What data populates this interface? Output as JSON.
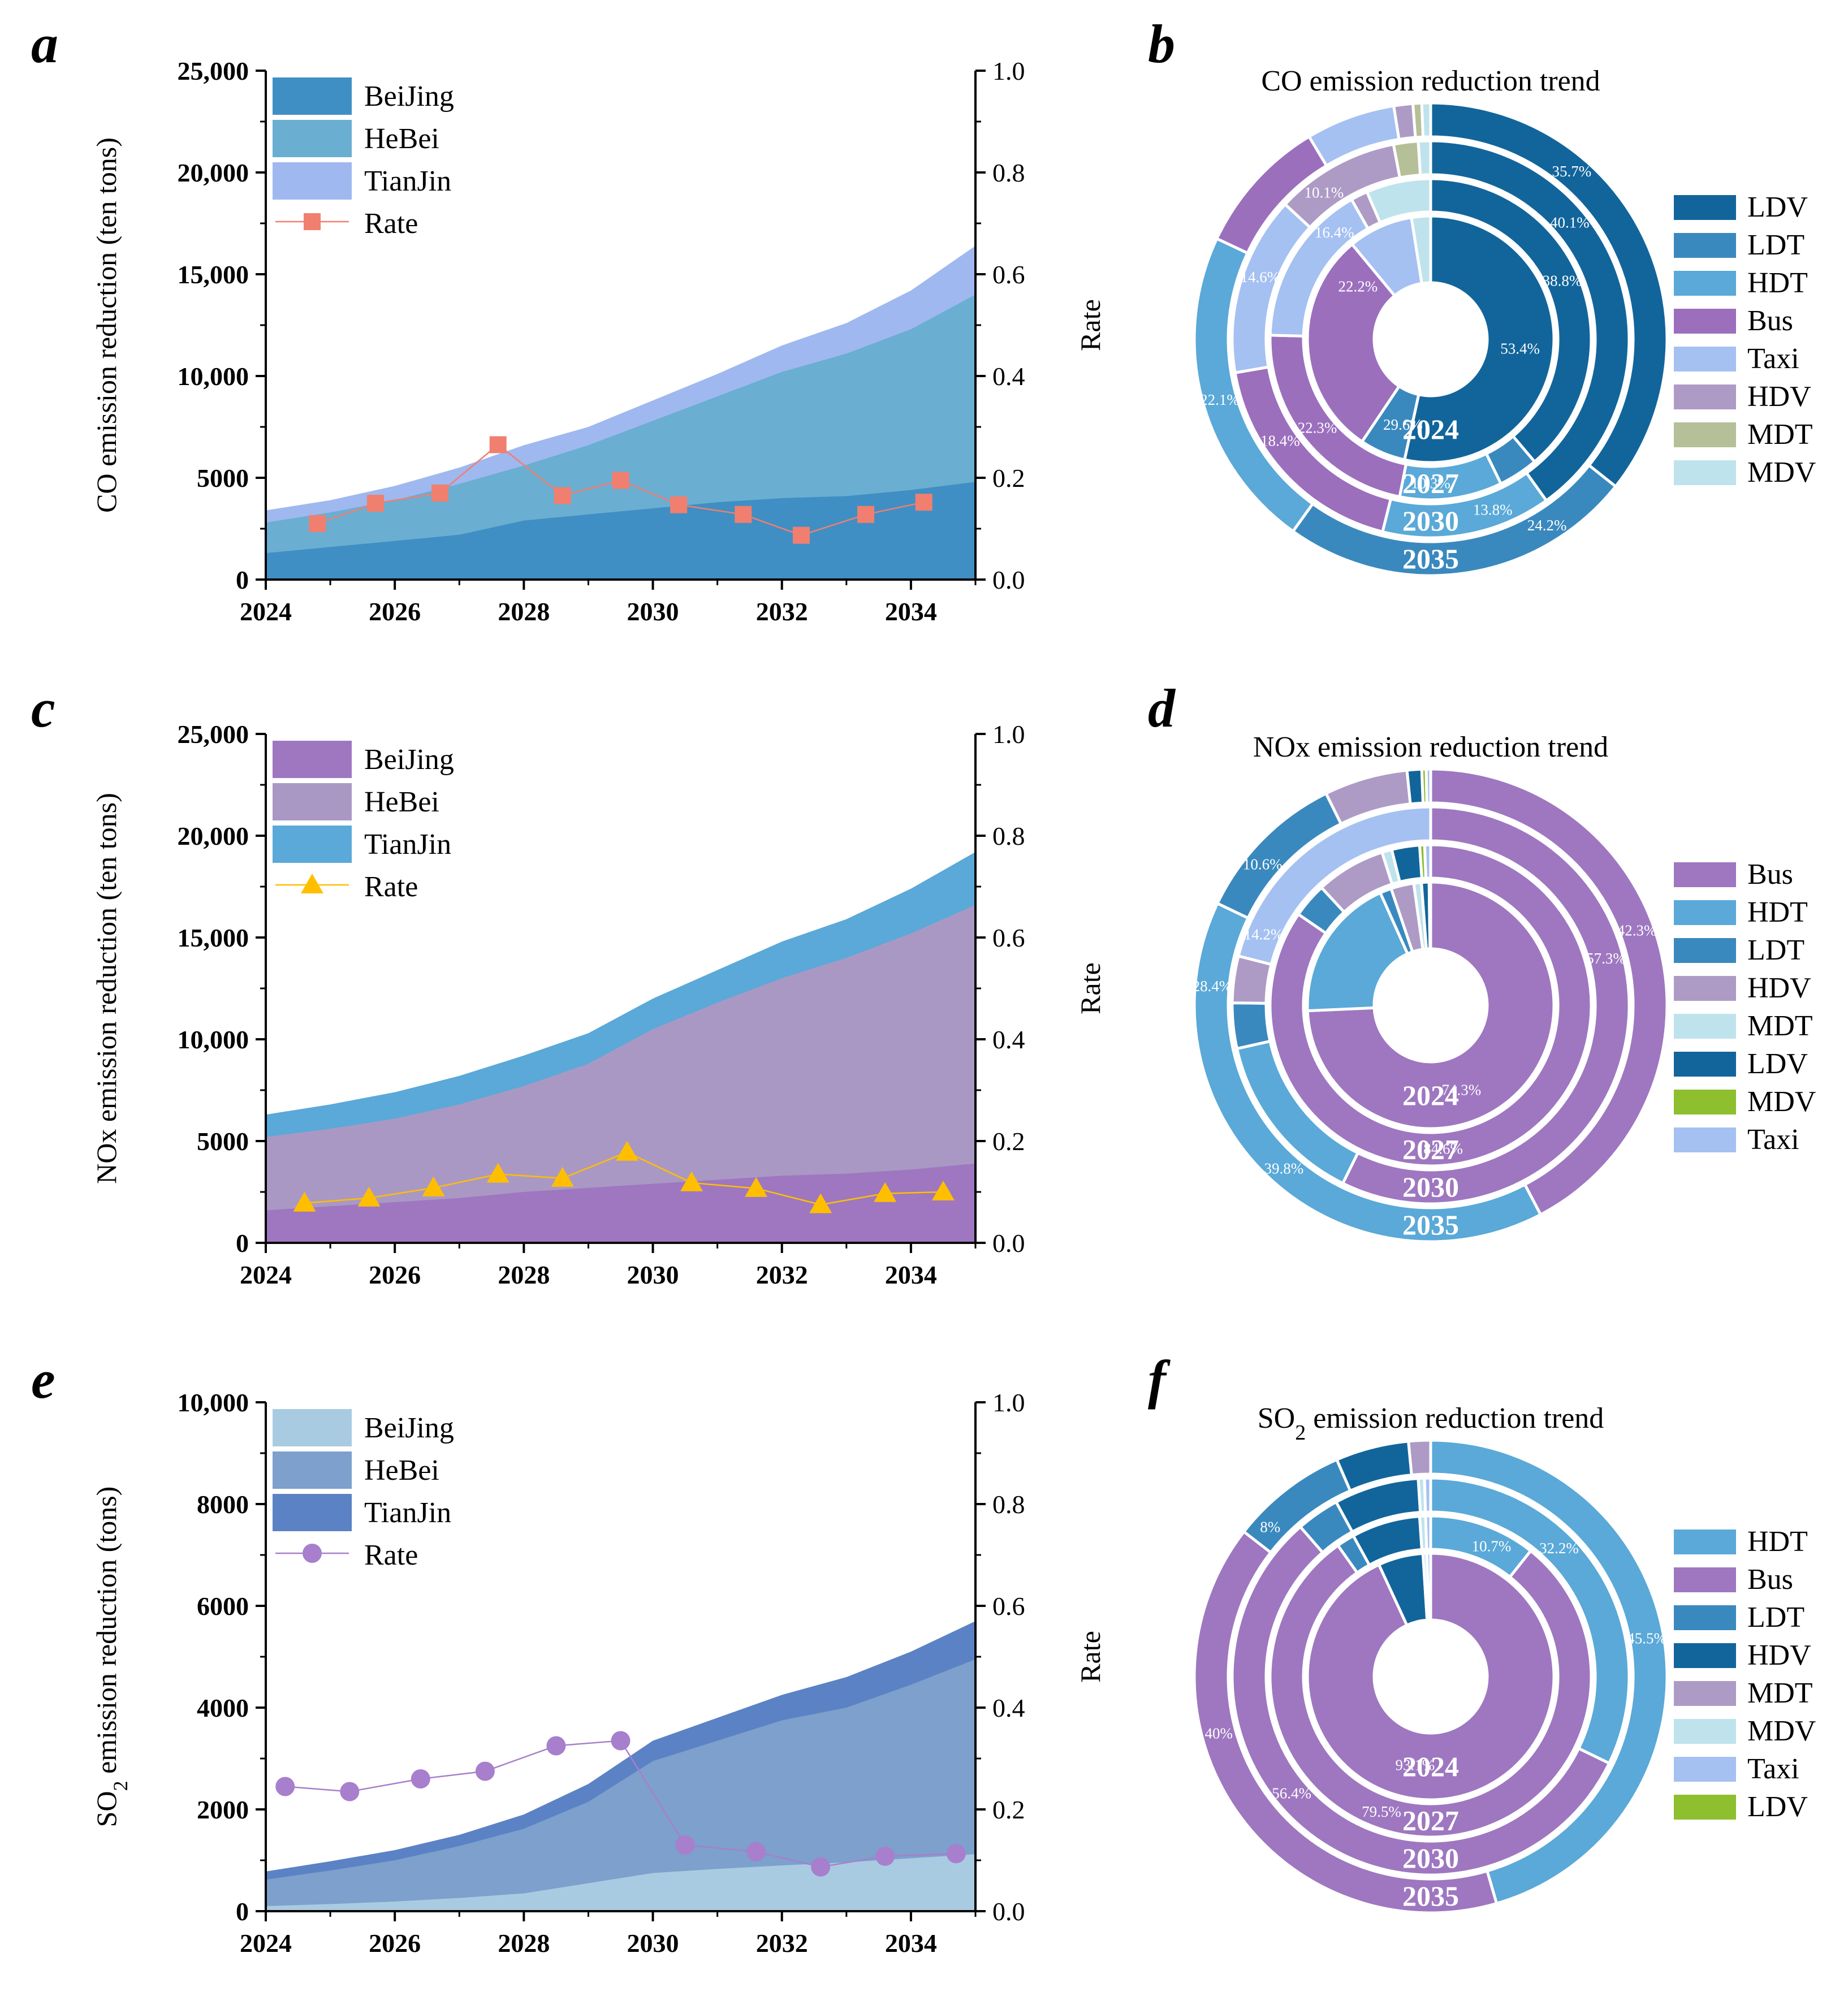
{
  "colors": {
    "axis": "#000000",
    "rate_co": "#f07f6f",
    "rate_nox": "#ffbf00",
    "rate_so2": "#a77fcc"
  },
  "area_panels": [
    {
      "letter": "a",
      "ylabel": "CO emission reduction (ten tons)",
      "ylabel_sub": "",
      "right_label": "Rate",
      "left_ticks": [
        "25,000",
        "20,000",
        "15,000",
        "10,000",
        "5000",
        "0"
      ],
      "right_ticks": [
        "1.0",
        "0.8",
        "0.6",
        "0.4",
        "0.2",
        "0.0"
      ],
      "x_ticks": [
        "2024",
        "2026",
        "2028",
        "2030",
        "2032",
        "2034"
      ],
      "legend": [
        {
          "label": "BeiJing",
          "color": "#3f8fc4",
          "kind": "area"
        },
        {
          "label": "HeBei",
          "color": "#6aaed2",
          "kind": "area"
        },
        {
          "label": "TianJin",
          "color": "#9fb8f0",
          "kind": "area"
        },
        {
          "label": "Rate",
          "color": "#f07f6f",
          "kind": "square"
        }
      ]
    },
    {
      "letter": "c",
      "ylabel": "NOx emission reduction (ten tons)",
      "ylabel_sub": "",
      "right_label": "Rate",
      "left_ticks": [
        "25,000",
        "20,000",
        "15,000",
        "10,000",
        "5000",
        "0"
      ],
      "right_ticks": [
        "1.0",
        "0.8",
        "0.6",
        "0.4",
        "0.2",
        "0.0"
      ],
      "x_ticks": [
        "2024",
        "2026",
        "2028",
        "2030",
        "2032",
        "2034"
      ],
      "legend": [
        {
          "label": "BeiJing",
          "color": "#9e77c0",
          "kind": "area"
        },
        {
          "label": "HeBei",
          "color": "#aa98c4",
          "kind": "area"
        },
        {
          "label": "TianJin",
          "color": "#5aa9d8",
          "kind": "area"
        },
        {
          "label": "Rate",
          "color": "#ffbf00",
          "kind": "triangle"
        }
      ]
    },
    {
      "letter": "e",
      "ylabel": "SO",
      "ylabel_sub": "2",
      "ylabel_rest": " emission reduction (tons)",
      "right_label": "Rate",
      "left_ticks": [
        "10,000",
        "8000",
        "6000",
        "4000",
        "2000",
        "0"
      ],
      "right_ticks": [
        "1.0",
        "0.8",
        "0.6",
        "0.4",
        "0.2",
        "0.0"
      ],
      "x_ticks": [
        "2024",
        "2026",
        "2028",
        "2030",
        "2032",
        "2034"
      ],
      "legend": [
        {
          "label": "BeiJing",
          "color": "#a8cbe2",
          "kind": "area"
        },
        {
          "label": "HeBei",
          "color": "#7da0cc",
          "kind": "area"
        },
        {
          "label": "TianJin",
          "color": "#5b82c4",
          "kind": "area"
        },
        {
          "label": "Rate",
          "color": "#a77fcc",
          "kind": "circle"
        }
      ]
    }
  ],
  "donut_panels": [
    {
      "letter": "b",
      "title": "CO emission reduction trend",
      "title_sub": "",
      "title_rest": "",
      "legend": [
        {
          "label": "LDV",
          "color": "#12659b"
        },
        {
          "label": "LDT",
          "color": "#3a89be"
        },
        {
          "label": "HDT",
          "color": "#5aa9d8"
        },
        {
          "label": "Bus",
          "color": "#9c6fbd"
        },
        {
          "label": "Taxi",
          "color": "#a5c1f2"
        },
        {
          "label": "HDV",
          "color": "#ad9bc6"
        },
        {
          "label": "MDT",
          "color": "#b5bf98"
        },
        {
          "label": "MDV",
          "color": "#bfe3ec"
        }
      ],
      "ring_labels": [
        {
          "text": "53.4%",
          "ring": 0,
          "angle": 96
        },
        {
          "text": "29.6%",
          "ring": 0,
          "angle": 198
        },
        {
          "text": "22.2%",
          "ring": 0,
          "angle": 306
        },
        {
          "text": "38.8%",
          "ring": 1,
          "angle": 66
        },
        {
          "text": "10.3%",
          "ring": 1,
          "angle": 180
        },
        {
          "text": "22.3%",
          "ring": 1,
          "angle": 232
        },
        {
          "text": "16.4%",
          "ring": 1,
          "angle": 318
        },
        {
          "text": "40.1%",
          "ring": 2,
          "angle": 50
        },
        {
          "text": "13.8%",
          "ring": 2,
          "angle": 160
        },
        {
          "text": "18.4%",
          "ring": 2,
          "angle": 236
        },
        {
          "text": "14.6%",
          "ring": 2,
          "angle": 290
        },
        {
          "text": "10.1%",
          "ring": 2,
          "angle": 324
        },
        {
          "text": "35.7%",
          "ring": 3,
          "angle": 40
        },
        {
          "text": "24.2%",
          "ring": 3,
          "angle": 148
        },
        {
          "text": "22.1%",
          "ring": 3,
          "angle": 254
        }
      ]
    },
    {
      "letter": "d",
      "title": "NOx emission reduction trend",
      "title_sub": "",
      "title_rest": "",
      "legend": [
        {
          "label": "Bus",
          "color": "#9e77c0"
        },
        {
          "label": "HDT",
          "color": "#5aa9d8"
        },
        {
          "label": "LDT",
          "color": "#3a89be"
        },
        {
          "label": "HDV",
          "color": "#ad9bc6"
        },
        {
          "label": "MDT",
          "color": "#bfe3ec"
        },
        {
          "label": "LDV",
          "color": "#12659b"
        },
        {
          "label": "MDV",
          "color": "#8dbf2e"
        },
        {
          "label": "Taxi",
          "color": "#a5c1f2"
        }
      ],
      "ring_labels": [
        {
          "text": "74.3%",
          "ring": 0,
          "angle": 160
        },
        {
          "text": "84.6%",
          "ring": 1,
          "angle": 175
        },
        {
          "text": "57.3%",
          "ring": 2,
          "angle": 75
        },
        {
          "text": "14.2%",
          "ring": 2,
          "angle": 293
        },
        {
          "text": "42.3%",
          "ring": 3,
          "angle": 70
        },
        {
          "text": "39.8%",
          "ring": 3,
          "angle": 222
        },
        {
          "text": "28.4%",
          "ring": 3,
          "angle": 275
        },
        {
          "text": "10.6%",
          "ring": 3,
          "angle": 310
        }
      ]
    },
    {
      "letter": "f",
      "title": "SO",
      "title_sub": "2",
      "title_rest": " emission reduction trend",
      "legend": [
        {
          "label": "HDT",
          "color": "#5aa9d8"
        },
        {
          "label": "Bus",
          "color": "#9e77c0"
        },
        {
          "label": "LDT",
          "color": "#3a89be"
        },
        {
          "label": "HDV",
          "color": "#12659b"
        },
        {
          "label": "MDT",
          "color": "#ad9bc6"
        },
        {
          "label": "MDV",
          "color": "#bfe3ec"
        },
        {
          "label": "Taxi",
          "color": "#a5c1f2"
        },
        {
          "label": "LDV",
          "color": "#8dbf2e"
        }
      ],
      "ring_labels": [
        {
          "text": "93.1%",
          "ring": 0,
          "angle": 190
        },
        {
          "text": "79.5%",
          "ring": 1,
          "angle": 200
        },
        {
          "text": "56.4%",
          "ring": 2,
          "angle": 230
        },
        {
          "text": "10.7%",
          "ring": 1,
          "angle": 25
        },
        {
          "text": "32.2%",
          "ring": 2,
          "angle": 45
        },
        {
          "text": "45.5%",
          "ring": 3,
          "angle": 80
        },
        {
          "text": "40%",
          "ring": 3,
          "angle": 255
        },
        {
          "text": "8%",
          "ring": 3,
          "angle": 313
        }
      ]
    }
  ],
  "chart_data": [
    {
      "type": "area",
      "panel": "a",
      "title": "",
      "xlabel": "",
      "ylabel": "CO emission reduction (ten tons)",
      "y2label": "Rate",
      "xlim": [
        2024,
        2035
      ],
      "ylim": [
        0,
        25000
      ],
      "y2lim": [
        0,
        1
      ],
      "stacked": false,
      "x": [
        2024,
        2025,
        2026,
        2027,
        2028,
        2029,
        2030,
        2031,
        2032,
        2033,
        2034,
        2035
      ],
      "series": [
        {
          "name": "TianJin",
          "values": [
            3400,
            3900,
            4600,
            5500,
            6600,
            7500,
            8800,
            10100,
            11500,
            12600,
            14200,
            16400
          ]
        },
        {
          "name": "HeBei",
          "values": [
            2800,
            3300,
            3900,
            4700,
            5600,
            6600,
            7800,
            9000,
            10200,
            11100,
            12300,
            14000
          ]
        },
        {
          "name": "BeiJing",
          "values": [
            1300,
            1600,
            1900,
            2200,
            2900,
            3200,
            3500,
            3800,
            4000,
            4100,
            4400,
            4800
          ]
        }
      ],
      "rate": {
        "name": "Rate",
        "marker": "square",
        "x": [
          2024.8,
          2025.7,
          2026.7,
          2027.6,
          2028.6,
          2029.5,
          2030.4,
          2031.4,
          2032.3,
          2033.3,
          2034.2
        ],
        "values": [
          0.11,
          0.15,
          0.17,
          0.265,
          0.165,
          0.195,
          0.147,
          0.128,
          0.087,
          0.128,
          0.152
        ]
      }
    },
    {
      "type": "area",
      "panel": "c",
      "title": "",
      "xlabel": "",
      "ylabel": "NOx emission reduction (ten tons)",
      "y2label": "Rate",
      "xlim": [
        2024,
        2035
      ],
      "ylim": [
        0,
        25000
      ],
      "y2lim": [
        0,
        1
      ],
      "stacked": false,
      "x": [
        2024,
        2025,
        2026,
        2027,
        2028,
        2029,
        2030,
        2031,
        2032,
        2033,
        2034,
        2035
      ],
      "series": [
        {
          "name": "TianJin",
          "values": [
            6300,
            6800,
            7400,
            8200,
            9200,
            10300,
            12000,
            13400,
            14800,
            15900,
            17400,
            19200
          ]
        },
        {
          "name": "HeBei",
          "values": [
            5200,
            5600,
            6100,
            6800,
            7700,
            8800,
            10500,
            11800,
            13000,
            14000,
            15200,
            16600
          ]
        },
        {
          "name": "BeiJing",
          "values": [
            1600,
            1800,
            2000,
            2200,
            2500,
            2700,
            2900,
            3100,
            3300,
            3400,
            3600,
            3900
          ]
        }
      ],
      "rate": {
        "name": "Rate",
        "marker": "triangle",
        "x": [
          2024.6,
          2025.6,
          2026.6,
          2027.6,
          2028.6,
          2029.6,
          2030.6,
          2031.6,
          2032.6,
          2033.6,
          2034.5
        ],
        "values": [
          0.078,
          0.088,
          0.108,
          0.135,
          0.127,
          0.178,
          0.118,
          0.107,
          0.075,
          0.097,
          0.1
        ]
      }
    },
    {
      "type": "area",
      "panel": "e",
      "title": "",
      "xlabel": "",
      "ylabel": "SO2 emission reduction (tons)",
      "y2label": "Rate",
      "xlim": [
        2024,
        2035
      ],
      "ylim": [
        0,
        10000
      ],
      "y2lim": [
        0,
        1
      ],
      "stacked": false,
      "x": [
        2024,
        2025,
        2026,
        2027,
        2028,
        2029,
        2030,
        2031,
        2032,
        2033,
        2034,
        2035
      ],
      "series": [
        {
          "name": "TianJin",
          "values": [
            780,
            980,
            1200,
            1500,
            1900,
            2500,
            3350,
            3800,
            4250,
            4600,
            5100,
            5700
          ]
        },
        {
          "name": "HeBei",
          "values": [
            620,
            800,
            1000,
            1280,
            1620,
            2150,
            2950,
            3350,
            3750,
            4000,
            4450,
            4950
          ]
        },
        {
          "name": "BeiJing",
          "values": [
            100,
            140,
            190,
            260,
            350,
            550,
            750,
            830,
            900,
            960,
            1040,
            1120
          ]
        }
      ],
      "rate": {
        "name": "Rate",
        "marker": "circle",
        "x": [
          2024.3,
          2025.3,
          2026.4,
          2027.4,
          2028.5,
          2029.5,
          2030.5,
          2031.6,
          2032.6,
          2033.6,
          2034.7
        ],
        "values": [
          0.245,
          0.235,
          0.26,
          0.275,
          0.325,
          0.335,
          0.13,
          0.117,
          0.087,
          0.108,
          0.113
        ]
      }
    },
    {
      "type": "pie",
      "panel": "b",
      "title": "CO emission reduction trend",
      "rings": [
        "2024",
        "2027",
        "2030",
        "2035"
      ],
      "categories": [
        "LDV",
        "LDT",
        "HDT",
        "Bus",
        "Taxi",
        "HDV",
        "MDT",
        "MDV"
      ],
      "values": [
        [
          53.4,
          6.0,
          0,
          29.6,
          8.5,
          0,
          0,
          2.5
        ],
        [
          38.8,
          4.0,
          10.3,
          22.3,
          16.4,
          1.7,
          0,
          6.5
        ],
        [
          40.1,
          0,
          13.8,
          18.4,
          14.6,
          10.1,
          2.0,
          1.0
        ],
        [
          35.7,
          24.2,
          22.1,
          9.4,
          6.1,
          1.3,
          0.6,
          0.6
        ]
      ]
    },
    {
      "type": "pie",
      "panel": "d",
      "title": "NOx emission reduction trend",
      "rings": [
        "2024",
        "2027",
        "2030",
        "2035"
      ],
      "categories": [
        "Bus",
        "HDT",
        "LDT",
        "HDV",
        "MDT",
        "LDV",
        "MDV",
        "Taxi"
      ],
      "values": [
        [
          74.3,
          19.0,
          1.5,
          3.0,
          1.0,
          1.0,
          0,
          0.2
        ],
        [
          84.6,
          0,
          3.5,
          7.0,
          1.0,
          2.8,
          0.5,
          0.6
        ],
        [
          57.3,
          14.2,
          3.7,
          3.8,
          0,
          0,
          0,
          21.0
        ],
        [
          42.3,
          39.8,
          10.6,
          5.7,
          0,
          1.0,
          0.3,
          0.3
        ]
      ]
    },
    {
      "type": "pie",
      "panel": "f",
      "title": "SO2 emission reduction trend",
      "rings": [
        "2024",
        "2027",
        "2030",
        "2035"
      ],
      "categories": [
        "HDT",
        "Bus",
        "LDT",
        "HDV",
        "MDT",
        "MDV",
        "Taxi",
        "LDV"
      ],
      "values": [
        [
          0,
          93.1,
          0,
          5.9,
          0,
          0.5,
          0.5,
          0
        ],
        [
          10.7,
          79.5,
          1.8,
          6.9,
          0,
          0.6,
          0.5,
          0
        ],
        [
          32.2,
          56.4,
          3.5,
          6.9,
          0,
          0.5,
          0.5,
          0
        ],
        [
          45.5,
          40,
          8,
          5.0,
          1.5,
          0,
          0,
          0
        ]
      ]
    }
  ]
}
